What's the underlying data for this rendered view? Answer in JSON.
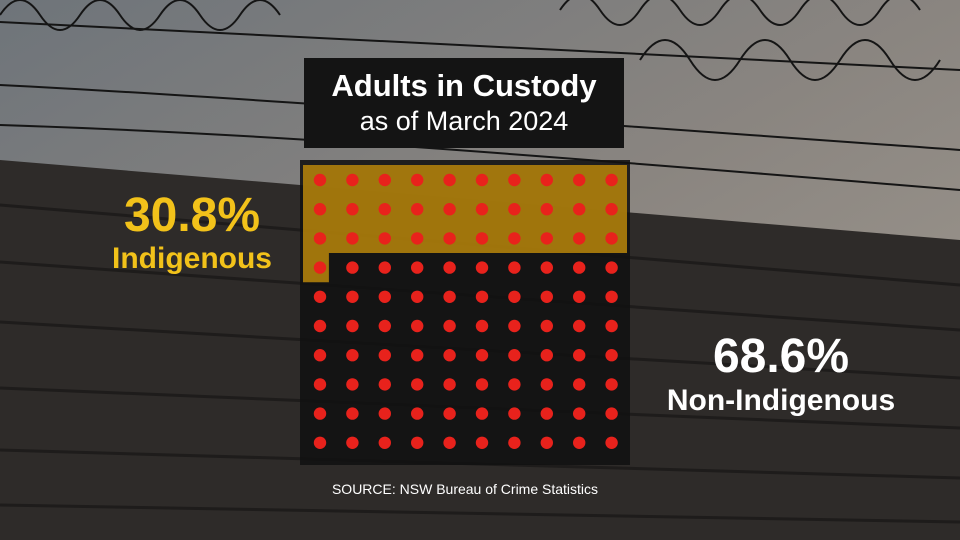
{
  "chart_data": {
    "type": "waffle",
    "title": "Adults in Custody",
    "subtitle": "as of March 2024",
    "grid": {
      "rows": 10,
      "cols": 10
    },
    "series": [
      {
        "name": "Indigenous",
        "value_label": "30.8%",
        "value": 30.8,
        "color": "#f2c21a"
      },
      {
        "name": "Non-Indigenous",
        "value_label": "68.6%",
        "value": 68.6,
        "color": "#ffffff"
      }
    ],
    "dot_color": "#e8221c",
    "highlight_color": "#b8860b"
  },
  "source": "SOURCE: NSW Bureau of Crime Statistics"
}
